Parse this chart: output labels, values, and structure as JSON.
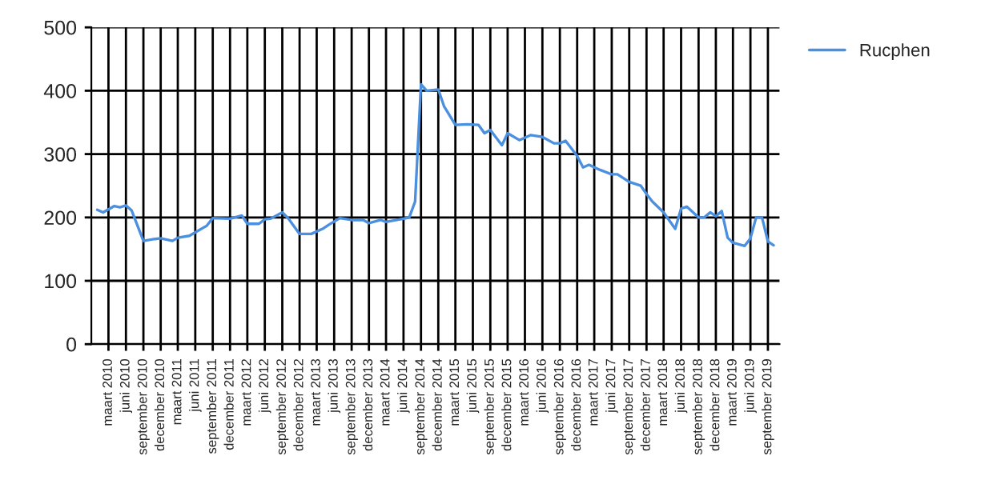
{
  "chart_data": {
    "type": "line",
    "x": [
      "2010-01",
      "2010-02",
      "2010-04",
      "2010-05",
      "2010-06",
      "2010-07",
      "2010-09",
      "2010-11",
      "2010-12",
      "2011-02",
      "2011-03",
      "2011-05",
      "2011-08",
      "2011-09",
      "2011-12",
      "2012-02",
      "2012-03",
      "2012-05",
      "2012-06",
      "2012-07",
      "2012-09",
      "2012-10",
      "2012-12",
      "2013-02",
      "2013-04",
      "2013-05",
      "2013-07",
      "2013-09",
      "2013-11",
      "2013-12",
      "2014-02",
      "2014-03",
      "2014-06",
      "2014-07",
      "2014-08",
      "2014-09",
      "2014-10",
      "2014-12",
      "2015-01",
      "2015-03",
      "2015-05",
      "2015-07",
      "2015-08",
      "2015-09",
      "2015-11",
      "2015-12",
      "2016-02",
      "2016-04",
      "2016-06",
      "2016-08",
      "2016-09",
      "2016-10",
      "2016-12",
      "2017-01",
      "2017-02",
      "2017-04",
      "2017-06",
      "2017-07",
      "2017-09",
      "2017-11",
      "2017-12",
      "2018-01",
      "2018-03",
      "2018-05",
      "2018-06",
      "2018-07",
      "2018-09",
      "2018-10",
      "2018-11",
      "2018-12",
      "2019-01",
      "2019-02",
      "2019-03",
      "2019-05",
      "2019-06",
      "2019-07",
      "2019-08",
      "2019-09",
      "2019-10"
    ],
    "series": [
      {
        "name": "Rucphen",
        "color": "#4a8fe0",
        "values": [
          212,
          208,
          218,
          216,
          219,
          211,
          163,
          166,
          167,
          163,
          168,
          171,
          187,
          199,
          198,
          203,
          190,
          190,
          197,
          198,
          208,
          199,
          174,
          174,
          182,
          188,
          199,
          196,
          196,
          191,
          196,
          193,
          198,
          200,
          225,
          410,
          400,
          402,
          375,
          346,
          347,
          346,
          333,
          338,
          314,
          333,
          322,
          330,
          327,
          317,
          317,
          321,
          297,
          279,
          283,
          275,
          268,
          268,
          256,
          250,
          237,
          225,
          208,
          182,
          214,
          217,
          200,
          200,
          208,
          202,
          210,
          168,
          160,
          155,
          167,
          200,
          200,
          162,
          156
        ]
      }
    ],
    "xlim": [
      "2009-12",
      "2019-11"
    ],
    "xticks": [
      {
        "value": "2010-03",
        "label": "maart 2010"
      },
      {
        "value": "2010-06",
        "label": "juni 2010"
      },
      {
        "value": "2010-09",
        "label": "september 2010"
      },
      {
        "value": "2010-12",
        "label": "december 2010"
      },
      {
        "value": "2011-03",
        "label": "maart 2011"
      },
      {
        "value": "2011-06",
        "label": "juni 2011"
      },
      {
        "value": "2011-09",
        "label": "september 2011"
      },
      {
        "value": "2011-12",
        "label": "december 2011"
      },
      {
        "value": "2012-03",
        "label": "maart 2012"
      },
      {
        "value": "2012-06",
        "label": "juni 2012"
      },
      {
        "value": "2012-09",
        "label": "september 2012"
      },
      {
        "value": "2012-12",
        "label": "december 2012"
      },
      {
        "value": "2013-03",
        "label": "maart 2013"
      },
      {
        "value": "2013-06",
        "label": "juni 2013"
      },
      {
        "value": "2013-09",
        "label": "september 2013"
      },
      {
        "value": "2013-12",
        "label": "december 2013"
      },
      {
        "value": "2014-03",
        "label": "maart 2014"
      },
      {
        "value": "2014-06",
        "label": "juni 2014"
      },
      {
        "value": "2014-09",
        "label": "september 2014"
      },
      {
        "value": "2014-12",
        "label": "december 2014"
      },
      {
        "value": "2015-03",
        "label": "maart 2015"
      },
      {
        "value": "2015-06",
        "label": "juni 2015"
      },
      {
        "value": "2015-09",
        "label": "september 2015"
      },
      {
        "value": "2015-12",
        "label": "december 2015"
      },
      {
        "value": "2016-03",
        "label": "maart 2016"
      },
      {
        "value": "2016-06",
        "label": "juni 2016"
      },
      {
        "value": "2016-09",
        "label": "september 2016"
      },
      {
        "value": "2016-12",
        "label": "december 2016"
      },
      {
        "value": "2017-03",
        "label": "maart 2017"
      },
      {
        "value": "2017-06",
        "label": "juni 2017"
      },
      {
        "value": "2017-09",
        "label": "september 2017"
      },
      {
        "value": "2017-12",
        "label": "december 2017"
      },
      {
        "value": "2018-03",
        "label": "maart 2018"
      },
      {
        "value": "2018-06",
        "label": "juni 2018"
      },
      {
        "value": "2018-09",
        "label": "september 2018"
      },
      {
        "value": "2018-12",
        "label": "december 2018"
      },
      {
        "value": "2019-03",
        "label": "maart 2019"
      },
      {
        "value": "2019-06",
        "label": "juni 2019"
      },
      {
        "value": "2019-09",
        "label": "september 2019"
      }
    ],
    "ylim": [
      0,
      500
    ],
    "yticks": [
      0,
      100,
      200,
      300,
      400,
      500
    ],
    "grid": true,
    "legend": "top right"
  }
}
